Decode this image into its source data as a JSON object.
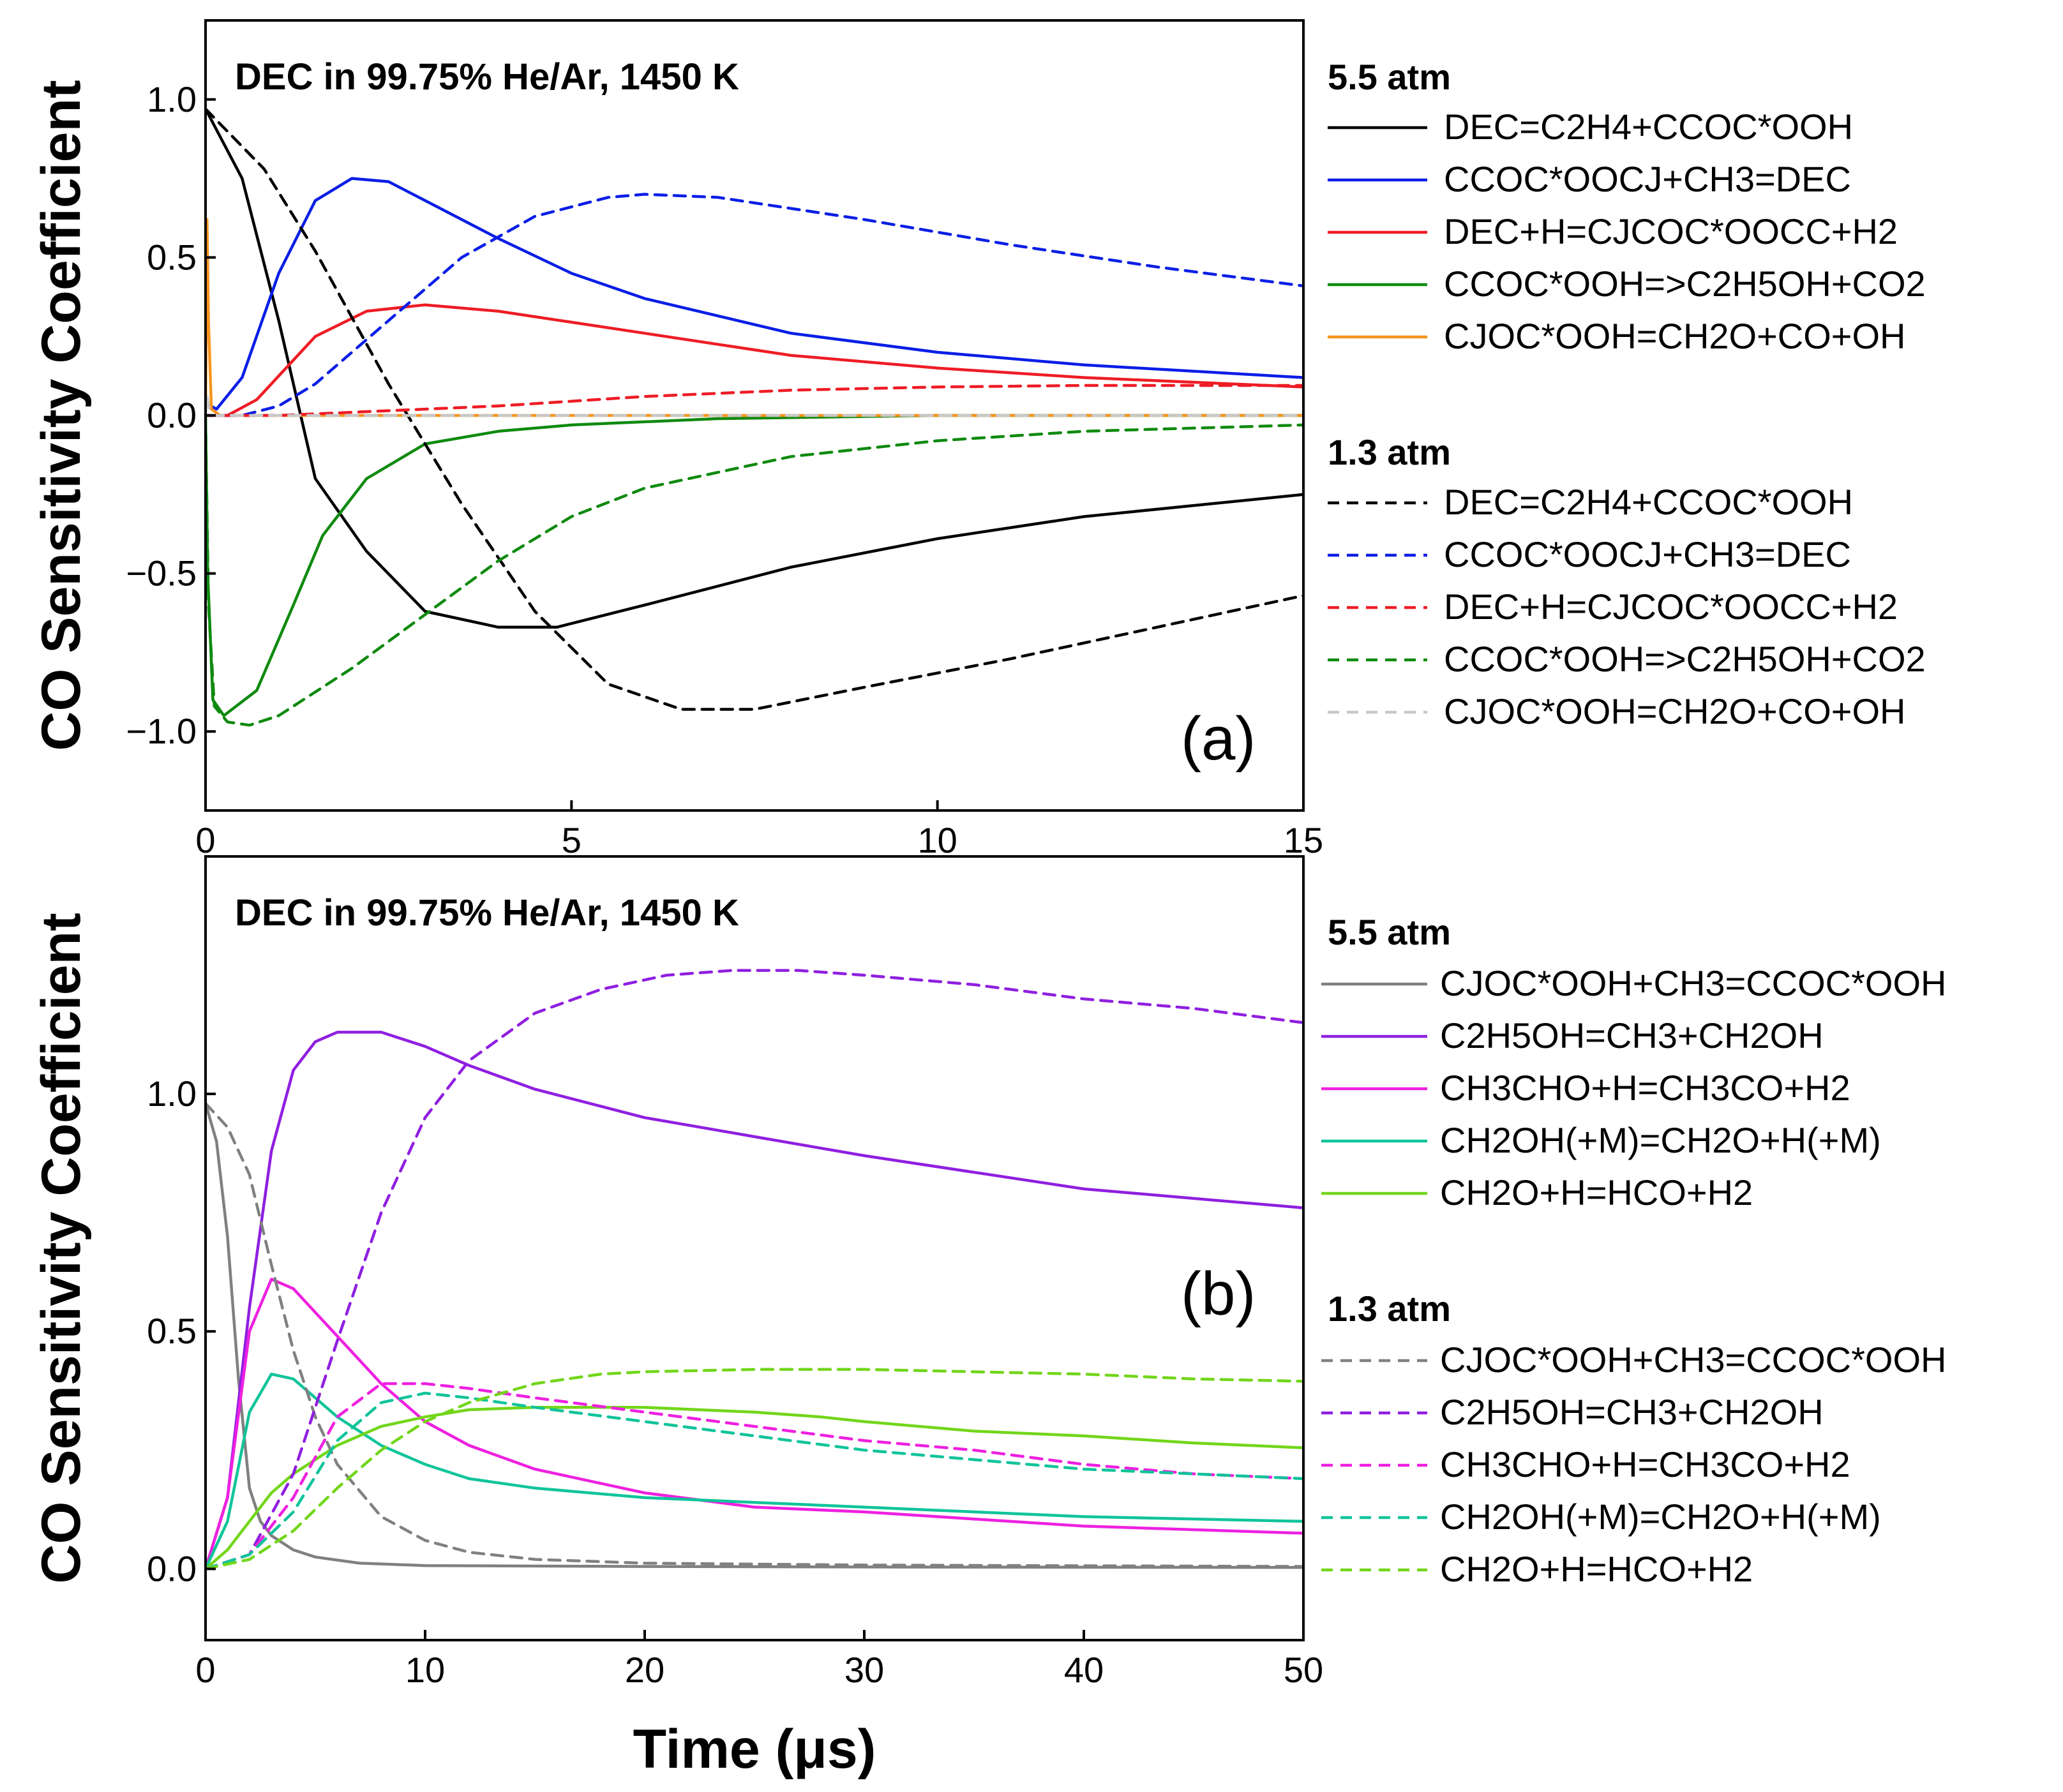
{
  "chart_data": [
    {
      "panel": "a",
      "type": "line",
      "title": "DEC in 99.75% He/Ar, 1450 K",
      "panel_label": "(a)",
      "xlabel": "",
      "ylabel": "CO Sensitivity Coefficient",
      "xlim": [
        0,
        15
      ],
      "ylim": [
        -1.25,
        1.25
      ],
      "xticks": [
        0,
        5,
        10,
        15
      ],
      "xtick_labels": [
        "0",
        "5",
        "10",
        "15"
      ],
      "yticks": [
        -1.0,
        -0.5,
        0.0,
        0.5,
        1.0
      ],
      "ytick_labels": [
        "−1.0",
        "−0.5",
        "0.0",
        "0.5",
        "1.0"
      ],
      "legend_groups": [
        {
          "title": "5.5 atm",
          "entries": [
            {
              "label": "DEC=C2H4+CCOC*OOH",
              "color": "#000000",
              "dash": "solid"
            },
            {
              "label": "CCOC*OOCJ+CH3=DEC",
              "color": "#0a1ee6",
              "dash": "solid"
            },
            {
              "label": "DEC+H=CJCOC*OOCC+H2",
              "color": "#ee1c25",
              "dash": "solid"
            },
            {
              "label": "CCOC*OOH=>C2H5OH+CO2",
              "color": "#0f8a0f",
              "dash": "solid"
            },
            {
              "label": "CJOC*OOH=CH2O+CO+OH",
              "color": "#f7941d",
              "dash": "solid"
            }
          ]
        },
        {
          "title": "1.3 atm",
          "entries": [
            {
              "label": "DEC=C2H4+CCOC*OOH",
              "color": "#000000",
              "dash": "dashed"
            },
            {
              "label": "CCOC*OOCJ+CH3=DEC",
              "color": "#0a1ee6",
              "dash": "dashed"
            },
            {
              "label": "DEC+H=CJCOC*OOCC+H2",
              "color": "#ee1c25",
              "dash": "dashed"
            },
            {
              "label": "CCOC*OOH=>C2H5OH+CO2",
              "color": "#0f8a0f",
              "dash": "dashed"
            },
            {
              "label": "CJOC*OOH=CH2O+CO+OH",
              "color": "#c8c8c8",
              "dash": "dashed"
            }
          ]
        }
      ],
      "series": [
        {
          "name": "DEC=C2H4+CCOC*OOH (5.5 atm)",
          "color": "#000000",
          "dash": "solid",
          "x": [
            0,
            0.5,
            1.0,
            1.5,
            2.2,
            3.0,
            4.0,
            4.8,
            6.0,
            8.0,
            10.0,
            12.0,
            15.0
          ],
          "y": [
            0.97,
            0.75,
            0.3,
            -0.2,
            -0.43,
            -0.62,
            -0.67,
            -0.67,
            -0.6,
            -0.48,
            -0.39,
            -0.32,
            -0.25
          ]
        },
        {
          "name": "CCOC*OOCJ+CH3=DEC (5.5 atm)",
          "color": "#0a1ee6",
          "dash": "solid",
          "x": [
            0,
            0.15,
            0.5,
            1.0,
            1.5,
            2.0,
            2.5,
            3.0,
            4.0,
            5.0,
            6.0,
            8.0,
            10.0,
            12.0,
            15.0
          ],
          "y": [
            0.04,
            0.02,
            0.12,
            0.45,
            0.68,
            0.75,
            0.74,
            0.68,
            0.56,
            0.45,
            0.37,
            0.26,
            0.2,
            0.16,
            0.12
          ]
        },
        {
          "name": "DEC+H=CJCOC*OOCC+H2 (5.5 atm)",
          "color": "#ee1c25",
          "dash": "solid",
          "x": [
            0,
            0.3,
            0.7,
            1.5,
            2.2,
            3.0,
            4.0,
            6.0,
            8.0,
            10.0,
            12.0,
            15.0
          ],
          "y": [
            0.0,
            0.0,
            0.05,
            0.25,
            0.33,
            0.35,
            0.33,
            0.26,
            0.19,
            0.15,
            0.12,
            0.09
          ]
        },
        {
          "name": "CCOC*OOH=>C2H5OH+CO2 (5.5 atm)",
          "color": "#0f8a0f",
          "dash": "solid",
          "x": [
            0,
            0.03,
            0.1,
            0.25,
            0.7,
            1.2,
            1.6,
            2.2,
            3.0,
            4.0,
            5.0,
            7.0,
            10.0,
            15.0
          ],
          "y": [
            0.0,
            -0.5,
            -0.9,
            -0.95,
            -0.87,
            -0.6,
            -0.38,
            -0.2,
            -0.09,
            -0.05,
            -0.03,
            -0.01,
            0.0,
            0.0
          ]
        },
        {
          "name": "CJOC*OOH=CH2O+CO+OH (5.5 atm)",
          "color": "#f7941d",
          "dash": "solid",
          "x": [
            0,
            0.02,
            0.04,
            0.08,
            0.2,
            1.0,
            15.0
          ],
          "y": [
            0.0,
            0.62,
            0.3,
            0.02,
            0.0,
            0.0,
            0.0
          ]
        },
        {
          "name": "DEC=C2H4+CCOC*OOH (1.3 atm)",
          "color": "#000000",
          "dash": "dashed",
          "x": [
            0,
            0.8,
            1.5,
            2.5,
            3.5,
            4.5,
            5.5,
            6.5,
            7.5,
            9.0,
            11.0,
            13.0,
            15.0
          ],
          "y": [
            0.97,
            0.78,
            0.52,
            0.1,
            -0.28,
            -0.62,
            -0.85,
            -0.93,
            -0.93,
            -0.86,
            -0.77,
            -0.67,
            -0.57
          ]
        },
        {
          "name": "CCOC*OOCJ+CH3=DEC (1.3 atm)",
          "color": "#0a1ee6",
          "dash": "dashed",
          "x": [
            0,
            0.5,
            1.0,
            1.5,
            2.5,
            3.5,
            4.5,
            5.5,
            6.0,
            7.0,
            9.0,
            11.0,
            13.0,
            15.0
          ],
          "y": [
            0.0,
            0.0,
            0.03,
            0.1,
            0.3,
            0.5,
            0.63,
            0.69,
            0.7,
            0.69,
            0.62,
            0.54,
            0.47,
            0.41
          ]
        },
        {
          "name": "DEC+H=CJCOC*OOCC+H2 (1.3 atm)",
          "color": "#ee1c25",
          "dash": "dashed",
          "x": [
            0,
            1.0,
            2.0,
            3.0,
            4.0,
            6.0,
            8.0,
            10.0,
            12.0,
            15.0
          ],
          "y": [
            0.0,
            0.0,
            0.01,
            0.02,
            0.03,
            0.06,
            0.08,
            0.09,
            0.095,
            0.095
          ]
        },
        {
          "name": "CCOC*OOH=>C2H5OH+CO2 (1.3 atm)",
          "color": "#0f8a0f",
          "dash": "dashed",
          "x": [
            0,
            0.04,
            0.12,
            0.3,
            0.6,
            1.0,
            2.0,
            3.0,
            4.0,
            5.0,
            6.0,
            8.0,
            10.0,
            12.0,
            15.0
          ],
          "y": [
            0.0,
            -0.6,
            -0.92,
            -0.97,
            -0.98,
            -0.95,
            -0.8,
            -0.63,
            -0.46,
            -0.32,
            -0.23,
            -0.13,
            -0.08,
            -0.05,
            -0.03
          ]
        },
        {
          "name": "CJOC*OOH=CH2O+CO+OH (1.3 atm)",
          "color": "#c8c8c8",
          "dash": "dashed",
          "x": [
            0,
            0.02,
            0.05,
            0.1,
            0.3,
            15.0
          ],
          "y": [
            0.0,
            0.06,
            0.02,
            0.0,
            0.0,
            0.0
          ]
        }
      ]
    },
    {
      "panel": "b",
      "type": "line",
      "title": "DEC in 99.75% He/Ar, 1450 K",
      "panel_label": "(b)",
      "xlabel": "Time (μs)",
      "ylabel": "CO Sensitivity Coefficient",
      "xlim": [
        0,
        50
      ],
      "ylim": [
        -0.15,
        1.5
      ],
      "xticks": [
        0,
        10,
        20,
        30,
        40,
        50
      ],
      "xtick_labels": [
        "0",
        "10",
        "20",
        "30",
        "40",
        "50"
      ],
      "yticks": [
        0.0,
        0.5,
        1.0
      ],
      "ytick_labels": [
        "0.0",
        "0.5",
        "1.0"
      ],
      "legend_groups": [
        {
          "title": "5.5 atm",
          "entries": [
            {
              "label": "CJOC*OOH+CH3=CCOC*OOH",
              "color": "#808080",
              "dash": "solid"
            },
            {
              "label": "C2H5OH=CH3+CH2OH",
              "color": "#8f1fe0",
              "dash": "solid"
            },
            {
              "label": "CH3CHO+H=CH3CO+H2",
              "color": "#ee20e0",
              "dash": "solid"
            },
            {
              "label": "CH2OH(+M)=CH2O+H(+M)",
              "color": "#10c49a",
              "dash": "solid"
            },
            {
              "label": "CH2O+H=HCO+H2",
              "color": "#72d61a",
              "dash": "solid"
            }
          ]
        },
        {
          "title": "1.3 atm",
          "entries": [
            {
              "label": "CJOC*OOH+CH3=CCOC*OOH",
              "color": "#808080",
              "dash": "dashed"
            },
            {
              "label": "C2H5OH=CH3+CH2OH",
              "color": "#8f1fe0",
              "dash": "dashed"
            },
            {
              "label": "CH3CHO+H=CH3CO+H2",
              "color": "#ee20e0",
              "dash": "dashed"
            },
            {
              "label": "CH2OH(+M)=CH2O+H(+M)",
              "color": "#10c49a",
              "dash": "dashed"
            },
            {
              "label": "CH2O+H=HCO+H2",
              "color": "#72d61a",
              "dash": "dashed"
            }
          ]
        }
      ],
      "series": [
        {
          "name": "CJOC*OOH+CH3=CCOC*OOH (5.5 atm)",
          "color": "#808080",
          "dash": "solid",
          "x": [
            0,
            0.5,
            1.0,
            1.5,
            2.0,
            2.5,
            3.0,
            4.0,
            5.0,
            7.0,
            10.0,
            20.0,
            30.0,
            50.0
          ],
          "y": [
            0.98,
            0.9,
            0.7,
            0.4,
            0.17,
            0.1,
            0.07,
            0.04,
            0.025,
            0.012,
            0.007,
            0.005,
            0.004,
            0.003
          ]
        },
        {
          "name": "C2H5OH=CH3+CH2OH (5.5 atm)",
          "color": "#8f1fe0",
          "dash": "solid",
          "x": [
            0,
            1.0,
            2.0,
            3.0,
            4.0,
            5.0,
            6.0,
            7.0,
            8.0,
            10.0,
            12.0,
            15.0,
            20.0,
            25.0,
            30.0,
            40.0,
            50.0
          ],
          "y": [
            0.0,
            0.15,
            0.55,
            0.88,
            1.05,
            1.11,
            1.13,
            1.13,
            1.13,
            1.1,
            1.06,
            1.01,
            0.95,
            0.91,
            0.87,
            0.8,
            0.76
          ]
        },
        {
          "name": "CH3CHO+H=CH3CO+H2 (5.5 atm)",
          "color": "#ee20e0",
          "dash": "solid",
          "x": [
            0,
            1.0,
            2.0,
            3.0,
            4.0,
            5.0,
            6.0,
            8.0,
            10.0,
            12.0,
            15.0,
            20.0,
            25.0,
            30.0,
            40.0,
            50.0
          ],
          "y": [
            0.0,
            0.15,
            0.5,
            0.61,
            0.59,
            0.54,
            0.49,
            0.39,
            0.31,
            0.26,
            0.21,
            0.16,
            0.13,
            0.12,
            0.09,
            0.075
          ]
        },
        {
          "name": "CH2OH(+M)=CH2O+H(+M) (5.5 atm)",
          "color": "#10c49a",
          "dash": "solid",
          "x": [
            0,
            1.0,
            2.0,
            3.0,
            4.0,
            5.0,
            6.0,
            8.0,
            10.0,
            12.0,
            15.0,
            20.0,
            25.0,
            30.0,
            40.0,
            50.0
          ],
          "y": [
            0.0,
            0.1,
            0.33,
            0.41,
            0.4,
            0.36,
            0.32,
            0.26,
            0.22,
            0.19,
            0.17,
            0.15,
            0.14,
            0.13,
            0.11,
            0.1
          ]
        },
        {
          "name": "CH2O+H=HCO+H2 (5.5 atm)",
          "color": "#72d61a",
          "dash": "solid",
          "x": [
            0,
            1.0,
            2.0,
            3.0,
            4.0,
            5.0,
            6.0,
            8.0,
            10.0,
            12.0,
            15.0,
            20.0,
            25.0,
            28.0,
            30.0,
            35.0,
            40.0,
            45.0,
            50.0
          ],
          "y": [
            0.0,
            0.04,
            0.1,
            0.16,
            0.2,
            0.23,
            0.26,
            0.3,
            0.32,
            0.335,
            0.34,
            0.34,
            0.33,
            0.32,
            0.31,
            0.29,
            0.28,
            0.265,
            0.255
          ]
        },
        {
          "name": "CJOC*OOH+CH3=CCOC*OOH (1.3 atm)",
          "color": "#808080",
          "dash": "dashed",
          "x": [
            0,
            1.0,
            2.0,
            3.0,
            4.0,
            5.0,
            6.0,
            8.0,
            10.0,
            12.0,
            15.0,
            20.0,
            30.0,
            50.0
          ],
          "y": [
            0.98,
            0.93,
            0.83,
            0.64,
            0.46,
            0.32,
            0.22,
            0.11,
            0.06,
            0.035,
            0.02,
            0.012,
            0.008,
            0.005
          ]
        },
        {
          "name": "C2H5OH=CH3+CH2OH (1.3 atm)",
          "color": "#8f1fe0",
          "dash": "dashed",
          "x": [
            0,
            2.0,
            4.0,
            6.0,
            8.0,
            10.0,
            12.0,
            15.0,
            18.0,
            21.0,
            24.0,
            27.0,
            30.0,
            35.0,
            40.0,
            45.0,
            50.0
          ],
          "y": [
            0.0,
            0.03,
            0.2,
            0.48,
            0.75,
            0.95,
            1.07,
            1.17,
            1.22,
            1.25,
            1.26,
            1.26,
            1.25,
            1.23,
            1.2,
            1.18,
            1.15
          ]
        },
        {
          "name": "CH3CHO+H=CH3CO+H2 (1.3 atm)",
          "color": "#ee20e0",
          "dash": "dashed",
          "x": [
            0,
            2.0,
            4.0,
            6.0,
            8.0,
            10.0,
            12.0,
            15.0,
            20.0,
            25.0,
            30.0,
            35.0,
            40.0,
            45.0,
            50.0
          ],
          "y": [
            0.0,
            0.03,
            0.15,
            0.32,
            0.39,
            0.39,
            0.38,
            0.36,
            0.33,
            0.3,
            0.27,
            0.25,
            0.22,
            0.2,
            0.19
          ]
        },
        {
          "name": "CH2OH(+M)=CH2O+H(+M) (1.3 atm)",
          "color": "#10c49a",
          "dash": "dashed",
          "x": [
            0,
            2.0,
            4.0,
            6.0,
            8.0,
            10.0,
            12.0,
            15.0,
            20.0,
            25.0,
            30.0,
            35.0,
            40.0,
            45.0,
            50.0
          ],
          "y": [
            0.0,
            0.03,
            0.12,
            0.27,
            0.35,
            0.37,
            0.36,
            0.34,
            0.31,
            0.28,
            0.25,
            0.23,
            0.21,
            0.2,
            0.19
          ]
        },
        {
          "name": "CH2O+H=HCO+H2 (1.3 atm)",
          "color": "#72d61a",
          "dash": "dashed",
          "x": [
            0,
            2.0,
            4.0,
            6.0,
            8.0,
            10.0,
            12.0,
            15.0,
            18.0,
            20.0,
            25.0,
            30.0,
            35.0,
            40.0,
            45.0,
            50.0
          ],
          "y": [
            0.0,
            0.02,
            0.08,
            0.17,
            0.25,
            0.31,
            0.35,
            0.39,
            0.41,
            0.415,
            0.42,
            0.42,
            0.415,
            0.41,
            0.4,
            0.395
          ]
        }
      ]
    }
  ]
}
